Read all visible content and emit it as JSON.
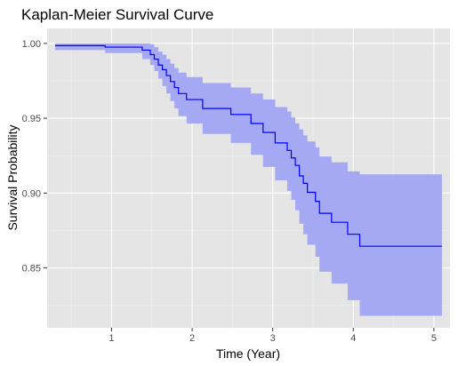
{
  "chart_data": {
    "type": "line",
    "step": true,
    "title": "Kaplan-Meier Survival Curve",
    "xlabel": "Time (Year)",
    "ylabel": "Survival Probability",
    "xlim": [
      0.2,
      5.2
    ],
    "ylim": [
      0.81,
      1.01
    ],
    "x_ticks": [
      1,
      2,
      3,
      4,
      5
    ],
    "x_tick_labels": [
      "1",
      "2",
      "3",
      "4",
      "5"
    ],
    "y_ticks": [
      0.85,
      0.9,
      0.95,
      1.0
    ],
    "y_tick_labels": [
      "0.85",
      "0.90",
      "0.95",
      "1.00"
    ],
    "grid": true,
    "legend": "none",
    "colors": {
      "panel": "#e5e5e5",
      "grid_major": "#ffffff",
      "grid_minor": "#f2f2f2",
      "line": "#0000ff",
      "ribbon": "#a5a8f2",
      "tick_text": "#4d4d4d"
    },
    "series": [
      {
        "x": [
          0.3,
          0.92,
          1.38,
          1.48,
          1.53,
          1.58,
          1.63,
          1.68,
          1.73,
          1.78,
          1.83,
          1.93,
          2.13,
          2.48,
          2.73,
          2.88,
          3.03,
          3.18,
          3.23,
          3.28,
          3.33,
          3.38,
          3.43,
          3.53,
          3.58,
          3.73,
          3.93,
          4.08,
          5.1
        ],
        "y": [
          0.9985,
          0.9975,
          0.9955,
          0.9925,
          0.9895,
          0.9855,
          0.9825,
          0.9785,
          0.9745,
          0.9705,
          0.9665,
          0.9625,
          0.9565,
          0.9525,
          0.9465,
          0.9405,
          0.9335,
          0.9285,
          0.9235,
          0.9185,
          0.9115,
          0.9065,
          0.9005,
          0.8945,
          0.8865,
          0.8805,
          0.8725,
          0.8645,
          0.8645
        ],
        "lower": [
          0.9955,
          0.9935,
          0.9895,
          0.9855,
          0.9815,
          0.9765,
          0.9715,
          0.9665,
          0.9615,
          0.9565,
          0.9515,
          0.9465,
          0.9395,
          0.9335,
          0.9255,
          0.9175,
          0.9085,
          0.9015,
          0.8955,
          0.8885,
          0.8795,
          0.8725,
          0.8655,
          0.8575,
          0.8475,
          0.8395,
          0.8285,
          0.818,
          0.818
        ],
        "upper": [
          1.0,
          1.0,
          1.0,
          0.9995,
          0.9975,
          0.9945,
          0.9925,
          0.9895,
          0.9865,
          0.9835,
          0.9805,
          0.9775,
          0.9735,
          0.9705,
          0.9665,
          0.9625,
          0.9575,
          0.9545,
          0.9505,
          0.9465,
          0.9425,
          0.9385,
          0.9345,
          0.9305,
          0.9245,
          0.9205,
          0.9145,
          0.9125,
          0.9125
        ]
      }
    ]
  }
}
